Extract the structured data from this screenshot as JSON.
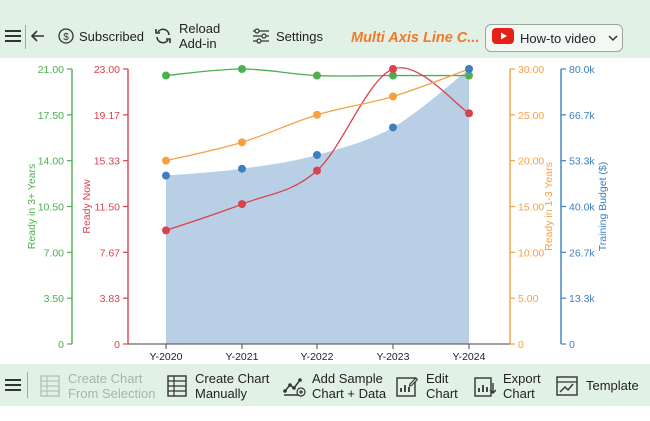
{
  "toolbar_top": {
    "menu_icon": "hamburger-icon",
    "back_icon": "arrow-left-icon",
    "subscribed_label": "Subscribed",
    "reload_label_1": "Reload",
    "reload_label_2": "Add-in",
    "settings_label": "Settings",
    "chart_title": "Multi Axis Line C...",
    "howto_label": "How-to video"
  },
  "toolbar_bottom": {
    "create_selection_1": "Create Chart",
    "create_selection_2": "From Selection",
    "create_manual_1": "Create Chart",
    "create_manual_2": "Manually",
    "add_sample_1": "Add Sample",
    "add_sample_2": "Chart + Data",
    "edit_chart_1": "Edit",
    "edit_chart_2": "Chart",
    "export_chart_1": "Export",
    "export_chart_2": "Chart",
    "template_label": "Template"
  },
  "colors": {
    "green": "#4caf50",
    "red": "#d9434e",
    "orange": "#f5a142",
    "blue": "#3d7fc0",
    "area": "#b8cfe6",
    "accent_title": "#f07a2a"
  },
  "chart_data": {
    "type": "line",
    "categories": [
      "Y-2020",
      "Y-2021",
      "Y-2022",
      "Y-2023",
      "Y-2024"
    ],
    "series": [
      {
        "name": "Ready in 3+ Years",
        "axis": "left-outer",
        "color": "#4caf50",
        "values": [
          20.5,
          21.0,
          20.5,
          20.5,
          20.5
        ]
      },
      {
        "name": "Ready Now",
        "axis": "left-inner",
        "color": "#d9434e",
        "values": [
          9.5,
          11.7,
          14.5,
          23.0,
          19.3
        ]
      },
      {
        "name": "Ready in 1-3 Years",
        "axis": "right-inner",
        "color": "#f5a142",
        "values": [
          20,
          22,
          25,
          27,
          30
        ]
      },
      {
        "name": "Training Budget ($)",
        "axis": "right-outer",
        "color": "#3d7fc0",
        "type": "area",
        "values": [
          49000,
          51000,
          55000,
          63000,
          80000
        ]
      }
    ],
    "axes": {
      "left-outer": {
        "label": "Ready in 3+ Years",
        "ticks": [
          "21.00",
          "17.50",
          "14.00",
          "10.50",
          "7.00",
          "3.50",
          "0"
        ],
        "range": [
          0,
          21
        ]
      },
      "left-inner": {
        "label": "Ready Now",
        "ticks": [
          "23.00",
          "19.17",
          "15.33",
          "11.50",
          "7.67",
          "3.83",
          "0"
        ],
        "range": [
          0,
          23
        ]
      },
      "right-inner": {
        "label": "Ready in 1-3 Years",
        "ticks": [
          "30.00",
          "25.00",
          "20.00",
          "15.00",
          "10.00",
          "5.00",
          "0"
        ],
        "range": [
          0,
          30
        ]
      },
      "right-outer": {
        "label": "Training Budget ($)",
        "ticks": [
          "80.0k",
          "66.7k",
          "53.3k",
          "40.0k",
          "26.7k",
          "13.3k",
          "0"
        ],
        "range": [
          0,
          80000
        ]
      }
    },
    "grid": false,
    "legend": "none"
  }
}
